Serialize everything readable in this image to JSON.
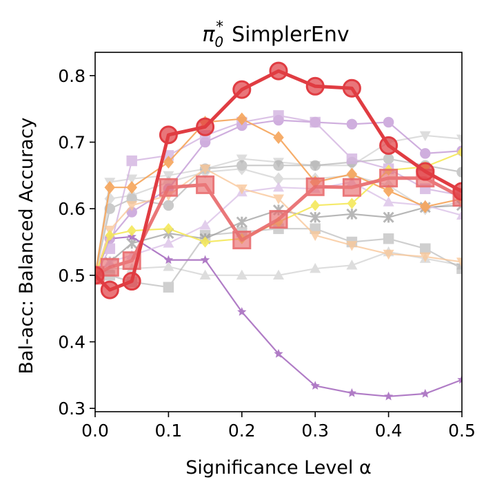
{
  "chart_data": {
    "type": "line",
    "title": "π0* SimplerEnv",
    "title_parts": {
      "symbol": "π",
      "subscript": "0",
      "superscript": "*",
      "text": "SimplerEnv"
    },
    "xlabel": "Significance Level α",
    "ylabel": "Bal-acc: Balanced Accuracy",
    "xlim": [
      0.0,
      0.5
    ],
    "ylim": [
      0.295,
      0.835
    ],
    "xticks": [
      0.0,
      0.1,
      0.2,
      0.3,
      0.4,
      0.5
    ],
    "xtick_labels": [
      "0.0",
      "0.1",
      "0.2",
      "0.3",
      "0.4",
      "0.5"
    ],
    "yticks": [
      0.3,
      0.4,
      0.5,
      0.6,
      0.7,
      0.8
    ],
    "ytick_labels": [
      "0.3",
      "0.4",
      "0.5",
      "0.6",
      "0.7",
      "0.8"
    ],
    "grid": false,
    "x": [
      0.0,
      0.02,
      0.05,
      0.1,
      0.15,
      0.2,
      0.25,
      0.3,
      0.35,
      0.4,
      0.45,
      0.5
    ],
    "series": [
      {
        "name": "gray-triangle-flat",
        "color": "#c8c8c8",
        "marker": "triangle",
        "alpha": 0.6,
        "size": 7,
        "values": [
          0.5,
          0.51,
          0.51,
          0.513,
          0.5,
          0.5,
          0.5,
          0.51,
          0.515,
          0.535,
          0.525,
          0.515
        ]
      },
      {
        "name": "gray-triangle-down",
        "color": "#c8c8c8",
        "marker": "triangle-down",
        "alpha": 0.6,
        "size": 7,
        "values": [
          0.5,
          0.64,
          0.645,
          0.65,
          0.66,
          0.675,
          0.67,
          0.665,
          0.665,
          0.7,
          0.71,
          0.705
        ]
      },
      {
        "name": "gray-circle",
        "color": "#a8a8a8",
        "marker": "circle",
        "alpha": 0.6,
        "size": 7,
        "values": [
          0.5,
          0.6,
          0.615,
          0.605,
          0.66,
          0.665,
          0.665,
          0.665,
          0.67,
          0.675,
          0.665,
          0.655
        ]
      },
      {
        "name": "gray-diamond",
        "color": "#c8c8c8",
        "marker": "diamond",
        "alpha": 0.6,
        "size": 7,
        "values": [
          0.5,
          0.615,
          0.62,
          0.64,
          0.655,
          0.66,
          0.645,
          0.645,
          0.65,
          0.635,
          0.6,
          0.61
        ]
      },
      {
        "name": "gray-square",
        "color": "#b0b0b0",
        "marker": "square",
        "alpha": 0.6,
        "size": 7,
        "values": [
          0.5,
          0.5,
          0.49,
          0.482,
          0.56,
          0.565,
          0.57,
          0.57,
          0.55,
          0.555,
          0.54,
          0.51
        ]
      },
      {
        "name": "gray-x",
        "color": "#999999",
        "marker": "x",
        "alpha": 0.7,
        "size": 7,
        "values": [
          0.5,
          0.52,
          0.548,
          0.563,
          0.555,
          0.58,
          0.598,
          0.587,
          0.592,
          0.587,
          0.602,
          0.605
        ]
      },
      {
        "name": "purple-star",
        "color": "#b07cc6",
        "marker": "star",
        "alpha": 1.0,
        "size": 6,
        "values": [
          0.5,
          0.555,
          0.558,
          0.523,
          0.523,
          0.445,
          0.382,
          0.334,
          0.323,
          0.318,
          0.322,
          0.343
        ]
      },
      {
        "name": "light-purple-circle",
        "color": "#c49bd6",
        "marker": "circle",
        "alpha": 0.8,
        "size": 7,
        "values": [
          0.5,
          0.555,
          0.595,
          0.63,
          0.7,
          0.725,
          0.733,
          0.73,
          0.727,
          0.73,
          0.683,
          0.687
        ]
      },
      {
        "name": "light-purple-square",
        "color": "#d3b4e0",
        "marker": "square",
        "alpha": 0.8,
        "size": 7,
        "values": [
          0.5,
          0.54,
          0.672,
          0.68,
          0.71,
          0.73,
          0.74,
          0.73,
          0.675,
          0.66,
          0.63,
          0.62
        ]
      },
      {
        "name": "light-purple-triangle",
        "color": "#dcc3e8",
        "marker": "triangle",
        "alpha": 0.8,
        "size": 7,
        "values": [
          0.5,
          0.52,
          0.53,
          0.548,
          0.575,
          0.625,
          0.632,
          0.63,
          0.64,
          0.61,
          0.605,
          0.59
        ]
      },
      {
        "name": "orange-diamond",
        "color": "#f6a55a",
        "marker": "diamond",
        "alpha": 0.9,
        "size": 7,
        "values": [
          0.5,
          0.632,
          0.632,
          0.67,
          0.73,
          0.735,
          0.707,
          0.64,
          0.652,
          0.627,
          0.603,
          0.615
        ]
      },
      {
        "name": "light-orange-triangle-down",
        "color": "#f9c89a",
        "marker": "triangle-down",
        "alpha": 0.8,
        "size": 7,
        "values": [
          0.5,
          0.568,
          0.605,
          0.62,
          0.66,
          0.63,
          0.615,
          0.56,
          0.545,
          0.532,
          0.528,
          0.52
        ]
      },
      {
        "name": "yellow-diamond",
        "color": "#f5e85a",
        "marker": "diamond",
        "alpha": 0.9,
        "size": 6,
        "values": [
          0.5,
          0.56,
          0.567,
          0.57,
          0.55,
          0.555,
          0.58,
          0.605,
          0.608,
          0.658,
          0.663,
          0.685
        ]
      },
      {
        "name": "red-square",
        "color": "#e8696b",
        "marker": "square",
        "alpha": 0.9,
        "size": 12,
        "bold": true,
        "values": [
          0.5,
          0.512,
          0.522,
          0.632,
          0.636,
          0.553,
          0.584,
          0.633,
          0.632,
          0.646,
          0.646,
          0.617
        ]
      },
      {
        "name": "red-circle",
        "color": "#e03c42",
        "marker": "circle",
        "alpha": 1.0,
        "size": 12,
        "bold": true,
        "values": [
          0.5,
          0.478,
          0.491,
          0.711,
          0.723,
          0.779,
          0.807,
          0.784,
          0.781,
          0.695,
          0.656,
          0.626
        ]
      }
    ]
  }
}
